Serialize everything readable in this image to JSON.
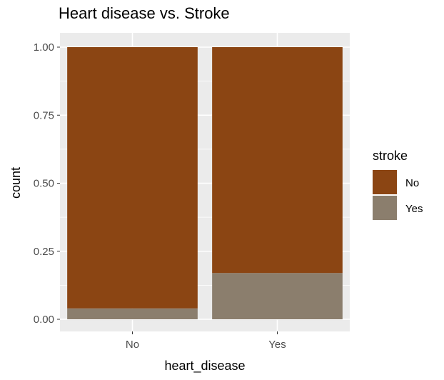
{
  "chart_data": {
    "type": "bar",
    "stacked": true,
    "title": "Heart disease vs. Stroke",
    "xlabel": "heart_disease",
    "ylabel": "count",
    "categories": [
      "No",
      "Yes"
    ],
    "series": [
      {
        "name": "Yes",
        "values": [
          0.04,
          0.17
        ],
        "color": "#8b7e6d"
      },
      {
        "name": "No",
        "values": [
          0.96,
          0.83
        ],
        "color": "#8b4513"
      }
    ],
    "ylim": [
      0,
      1
    ],
    "yticks": [
      0,
      0.25,
      0.5,
      0.75,
      1
    ],
    "ytick_labels": [
      "0.00",
      "0.25",
      "0.50",
      "0.75",
      "1.00"
    ],
    "grid": true,
    "legend": {
      "title": "stroke",
      "placement": "right",
      "entries": [
        {
          "label": "No",
          "color": "#8b4513"
        },
        {
          "label": "Yes",
          "color": "#8b7e6d"
        }
      ]
    }
  }
}
